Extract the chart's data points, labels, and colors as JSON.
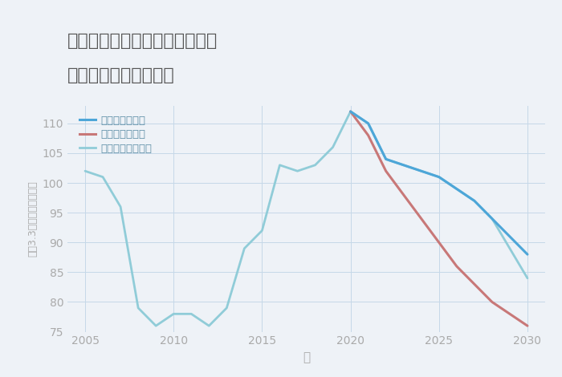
{
  "title_line1": "大阪府大阪市都島区都島北通の",
  "title_line2": "中古戸建ての価格推移",
  "xlabel": "年",
  "ylabel": "坪（3.3㎡）単価（万円）",
  "background_color": "#eef2f7",
  "plot_bg_color": "#eef2f7",
  "ylim": [
    75,
    113
  ],
  "yticks": [
    75,
    80,
    85,
    90,
    95,
    100,
    105,
    110
  ],
  "xticks": [
    2005,
    2010,
    2015,
    2020,
    2025,
    2030
  ],
  "normal_years": [
    2005,
    2006,
    2007,
    2008,
    2009,
    2010,
    2011,
    2012,
    2013,
    2014,
    2015,
    2016,
    2017,
    2018,
    2019,
    2020,
    2021,
    2022,
    2023,
    2024,
    2025,
    2026,
    2027,
    2028,
    2029,
    2030
  ],
  "normal_values": [
    102,
    101,
    96,
    79,
    76,
    78,
    78,
    76,
    79,
    89,
    92,
    103,
    102,
    103,
    106,
    112,
    110,
    104,
    103,
    102,
    101,
    99,
    97,
    94,
    89,
    84
  ],
  "good_years": [
    2020,
    2021,
    2022,
    2023,
    2024,
    2025,
    2026,
    2027,
    2028,
    2029,
    2030
  ],
  "good_values": [
    112,
    110,
    104,
    103,
    102,
    101,
    99,
    97,
    94,
    91,
    88
  ],
  "bad_years": [
    2020,
    2021,
    2022,
    2023,
    2024,
    2025,
    2026,
    2027,
    2028,
    2029,
    2030
  ],
  "bad_values": [
    112,
    108,
    102,
    98,
    94,
    90,
    86,
    83,
    80,
    78,
    76
  ],
  "color_good": "#4da6d8",
  "color_bad": "#c87878",
  "color_normal": "#90ccd8",
  "legend_good": "グッドシナリオ",
  "legend_bad": "バッドシナリオ",
  "legend_normal": "ノーマルシナリオ",
  "legend_text_color": "#6090a8",
  "grid_color": "#c5d8e8",
  "title_color": "#555555",
  "axis_label_color": "#aaaaaa",
  "tick_color": "#aaaaaa"
}
